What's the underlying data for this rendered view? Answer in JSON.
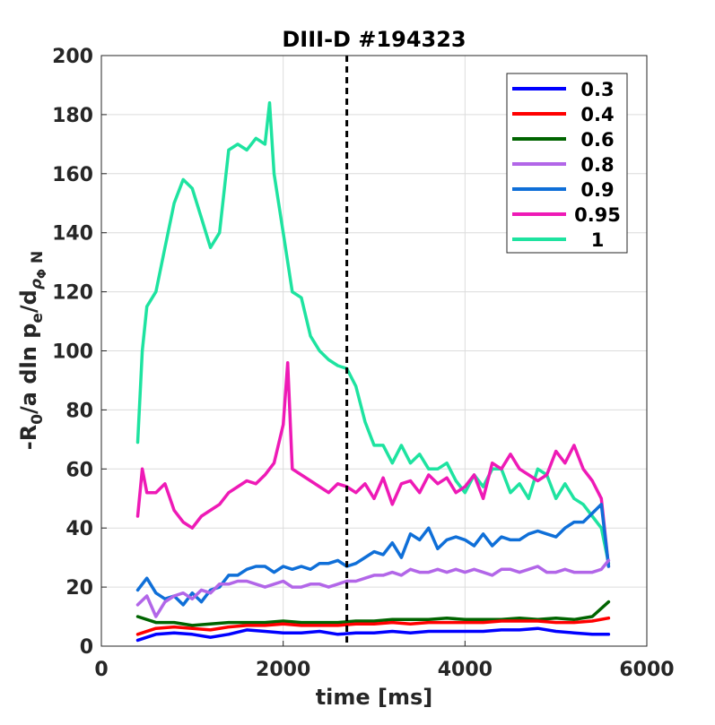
{
  "chart_data": {
    "type": "line",
    "title": "DIII-D #194323",
    "xlabel": "time [ms]",
    "ylabel": {
      "main": "-R",
      "sub0": "0",
      "mid": "/a  dln p",
      "sube": "e",
      "mid2": "/d",
      "rho": "ρ",
      "phi": "Φ",
      "n": " N"
    },
    "xlim": [
      0,
      6000
    ],
    "ylim": [
      0,
      200
    ],
    "xticks": [
      0,
      2000,
      4000,
      6000
    ],
    "yticks": [
      0,
      20,
      40,
      60,
      80,
      100,
      120,
      140,
      160,
      180,
      200
    ],
    "grid": true,
    "legend_position": "top-right",
    "vline": {
      "x": 2700,
      "style": "dashed",
      "color": "#000000"
    },
    "series": [
      {
        "name": "0.3",
        "color": "#0000ff",
        "x": [
          400,
          600,
          800,
          1000,
          1200,
          1400,
          1600,
          1800,
          2000,
          2200,
          2400,
          2600,
          2800,
          3000,
          3200,
          3400,
          3600,
          3800,
          4000,
          4200,
          4400,
          4600,
          4800,
          5000,
          5200,
          5400,
          5580
        ],
        "values": [
          2,
          4,
          4.5,
          4,
          3,
          4,
          5.5,
          5,
          4.5,
          4.5,
          5,
          4,
          4.5,
          4.5,
          5,
          4.5,
          5,
          5,
          5,
          5,
          5.5,
          5.5,
          6,
          5,
          4.5,
          4,
          4
        ]
      },
      {
        "name": "0.4",
        "color": "#ff0000",
        "x": [
          400,
          600,
          800,
          1000,
          1200,
          1400,
          1600,
          1800,
          2000,
          2200,
          2400,
          2600,
          2800,
          3000,
          3200,
          3400,
          3600,
          3800,
          4000,
          4200,
          4400,
          4600,
          4800,
          5000,
          5200,
          5400,
          5580
        ],
        "values": [
          4,
          6,
          6.5,
          6,
          5.5,
          6.5,
          7,
          7,
          7.5,
          7,
          7,
          7,
          7.5,
          7.5,
          8,
          7.5,
          8,
          8,
          8,
          8,
          8.5,
          8.5,
          8.5,
          8,
          8,
          8.5,
          9.5
        ]
      },
      {
        "name": "0.6",
        "color": "#006400",
        "x": [
          400,
          600,
          800,
          1000,
          1200,
          1400,
          1600,
          1800,
          2000,
          2200,
          2400,
          2600,
          2800,
          3000,
          3200,
          3400,
          3600,
          3800,
          4000,
          4200,
          4400,
          4600,
          4800,
          5000,
          5200,
          5400,
          5580
        ],
        "values": [
          10,
          8,
          8,
          7,
          7.5,
          8,
          8,
          8,
          8.5,
          8,
          8,
          8,
          8.5,
          8.5,
          9,
          9,
          9,
          9.5,
          9,
          9,
          9,
          9.5,
          9,
          9.5,
          9,
          10,
          15
        ]
      },
      {
        "name": "0.8",
        "color": "#b266e8",
        "x": [
          400,
          500,
          600,
          700,
          800,
          900,
          1000,
          1100,
          1200,
          1300,
          1400,
          1500,
          1600,
          1700,
          1800,
          1900,
          2000,
          2100,
          2200,
          2300,
          2400,
          2500,
          2600,
          2700,
          2800,
          2900,
          3000,
          3100,
          3200,
          3300,
          3400,
          3500,
          3600,
          3700,
          3800,
          3900,
          4000,
          4100,
          4200,
          4300,
          4400,
          4500,
          4600,
          4700,
          4800,
          4900,
          5000,
          5100,
          5200,
          5300,
          5400,
          5500,
          5580
        ],
        "values": [
          14,
          17,
          10,
          15,
          17,
          18,
          16,
          19,
          18,
          21,
          21,
          22,
          22,
          21,
          20,
          21,
          22,
          20,
          20,
          21,
          21,
          20,
          21,
          22,
          22,
          23,
          24,
          24,
          25,
          24,
          26,
          25,
          25,
          26,
          25,
          26,
          25,
          26,
          25,
          24,
          26,
          26,
          25,
          26,
          27,
          25,
          25,
          26,
          25,
          25,
          25,
          26,
          29
        ]
      },
      {
        "name": "0.9",
        "color": "#0f6fd8",
        "x": [
          400,
          500,
          600,
          700,
          800,
          900,
          1000,
          1100,
          1200,
          1300,
          1400,
          1500,
          1600,
          1700,
          1800,
          1900,
          2000,
          2100,
          2200,
          2300,
          2400,
          2500,
          2600,
          2700,
          2800,
          2900,
          3000,
          3100,
          3200,
          3300,
          3400,
          3500,
          3600,
          3700,
          3800,
          3900,
          4000,
          4100,
          4200,
          4300,
          4400,
          4500,
          4600,
          4700,
          4800,
          4900,
          5000,
          5100,
          5200,
          5300,
          5400,
          5500,
          5580
        ],
        "values": [
          19,
          23,
          18,
          16,
          17,
          14,
          18,
          15,
          19,
          20,
          24,
          24,
          26,
          27,
          27,
          25,
          27,
          26,
          27,
          26,
          28,
          28,
          29,
          27,
          28,
          30,
          32,
          31,
          35,
          30,
          38,
          36,
          40,
          33,
          36,
          37,
          36,
          34,
          38,
          34,
          37,
          36,
          36,
          38,
          39,
          38,
          37,
          40,
          42,
          42,
          45,
          48,
          27
        ]
      },
      {
        "name": "0.95",
        "color": "#ee1ab6",
        "x": [
          400,
          450,
          500,
          600,
          700,
          800,
          900,
          1000,
          1100,
          1200,
          1300,
          1400,
          1500,
          1600,
          1700,
          1800,
          1900,
          2000,
          2050,
          2100,
          2200,
          2300,
          2400,
          2500,
          2600,
          2700,
          2800,
          2900,
          3000,
          3100,
          3200,
          3300,
          3400,
          3500,
          3600,
          3700,
          3800,
          3900,
          4000,
          4100,
          4200,
          4300,
          4400,
          4500,
          4600,
          4700,
          4800,
          4900,
          5000,
          5100,
          5200,
          5300,
          5400,
          5500,
          5580
        ],
        "values": [
          44,
          60,
          52,
          52,
          55,
          46,
          42,
          40,
          44,
          46,
          48,
          52,
          54,
          56,
          55,
          58,
          62,
          75,
          96,
          60,
          58,
          56,
          54,
          52,
          55,
          54,
          52,
          55,
          50,
          57,
          48,
          55,
          56,
          52,
          58,
          55,
          57,
          52,
          54,
          58,
          50,
          62,
          60,
          65,
          60,
          58,
          56,
          58,
          66,
          62,
          68,
          60,
          56,
          50,
          27
        ]
      },
      {
        "name": "1",
        "color": "#1ee3a0",
        "x": [
          400,
          450,
          500,
          600,
          700,
          800,
          900,
          1000,
          1100,
          1200,
          1300,
          1400,
          1500,
          1600,
          1700,
          1800,
          1850,
          1900,
          2000,
          2100,
          2200,
          2300,
          2400,
          2500,
          2600,
          2700,
          2800,
          2900,
          3000,
          3100,
          3200,
          3300,
          3400,
          3500,
          3600,
          3700,
          3800,
          3900,
          4000,
          4100,
          4200,
          4300,
          4400,
          4500,
          4600,
          4700,
          4800,
          4900,
          5000,
          5100,
          5200,
          5300,
          5400,
          5500,
          5580
        ],
        "values": [
          69,
          100,
          115,
          120,
          135,
          150,
          158,
          155,
          145,
          135,
          140,
          168,
          170,
          168,
          172,
          170,
          184,
          160,
          140,
          120,
          118,
          105,
          100,
          97,
          95,
          94,
          88,
          76,
          68,
          68,
          62,
          68,
          62,
          65,
          60,
          60,
          62,
          56,
          52,
          58,
          54,
          60,
          60,
          52,
          55,
          50,
          60,
          58,
          50,
          55,
          50,
          48,
          44,
          40,
          28
        ]
      }
    ]
  }
}
